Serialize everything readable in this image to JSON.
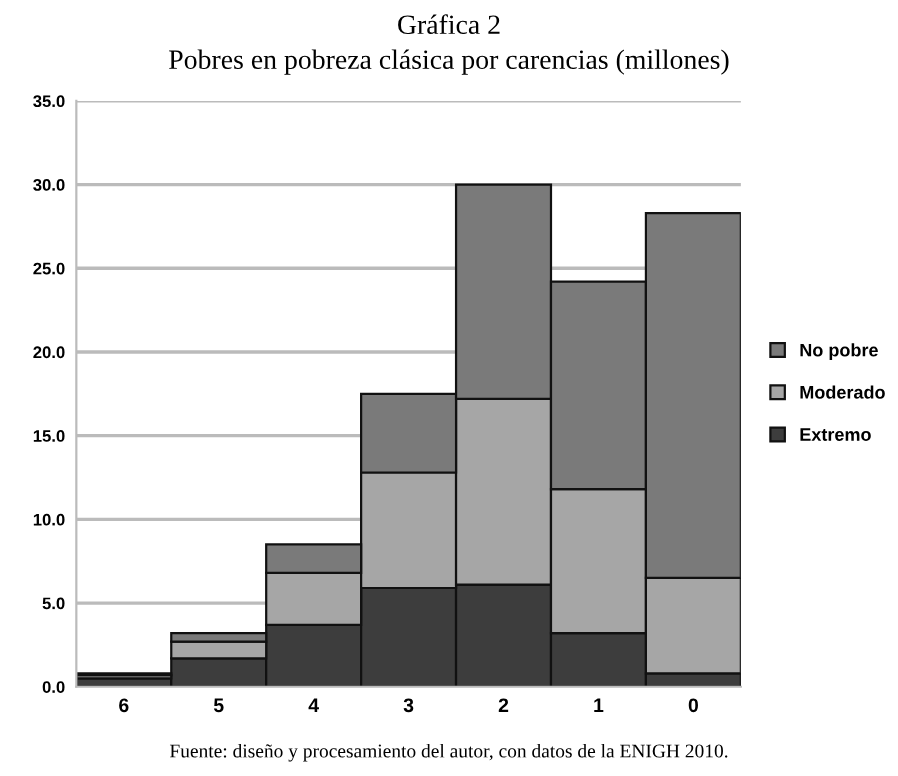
{
  "chart_data": {
    "type": "bar",
    "stacked": true,
    "title": "Gráfica 2",
    "subtitle": "Pobres en pobreza clásica por carencias (millones)",
    "categories": [
      "6",
      "5",
      "4",
      "3",
      "2",
      "1",
      "0"
    ],
    "series": [
      {
        "name": "Extremo",
        "color": "#3d3d3d",
        "values": [
          0.5,
          1.7,
          3.7,
          5.9,
          6.1,
          3.2,
          0.8
        ]
      },
      {
        "name": "Moderado",
        "color": "#a6a6a6",
        "values": [
          0.2,
          1.0,
          3.1,
          6.9,
          11.1,
          8.6,
          5.7
        ]
      },
      {
        "name": "No pobre",
        "color": "#7a7a7a",
        "values": [
          0.1,
          0.5,
          1.7,
          4.7,
          12.8,
          12.4,
          21.8
        ]
      }
    ],
    "ylim": [
      0,
      35
    ],
    "yticks": [
      {
        "value": 0,
        "label": "0.0"
      },
      {
        "value": 5,
        "label": "5.0"
      },
      {
        "value": 10,
        "label": "10.0"
      },
      {
        "value": 15,
        "label": "15.0"
      },
      {
        "value": 20,
        "label": "20.0"
      },
      {
        "value": 25,
        "label": "25.0"
      },
      {
        "value": 30,
        "label": "30.0"
      },
      {
        "value": 35,
        "label": "35.0"
      }
    ],
    "grid": "y",
    "legend": "right",
    "annotations": [
      "Fuente: diseño y procesamiento del autor, con datos de la ENIGH 2010."
    ]
  }
}
